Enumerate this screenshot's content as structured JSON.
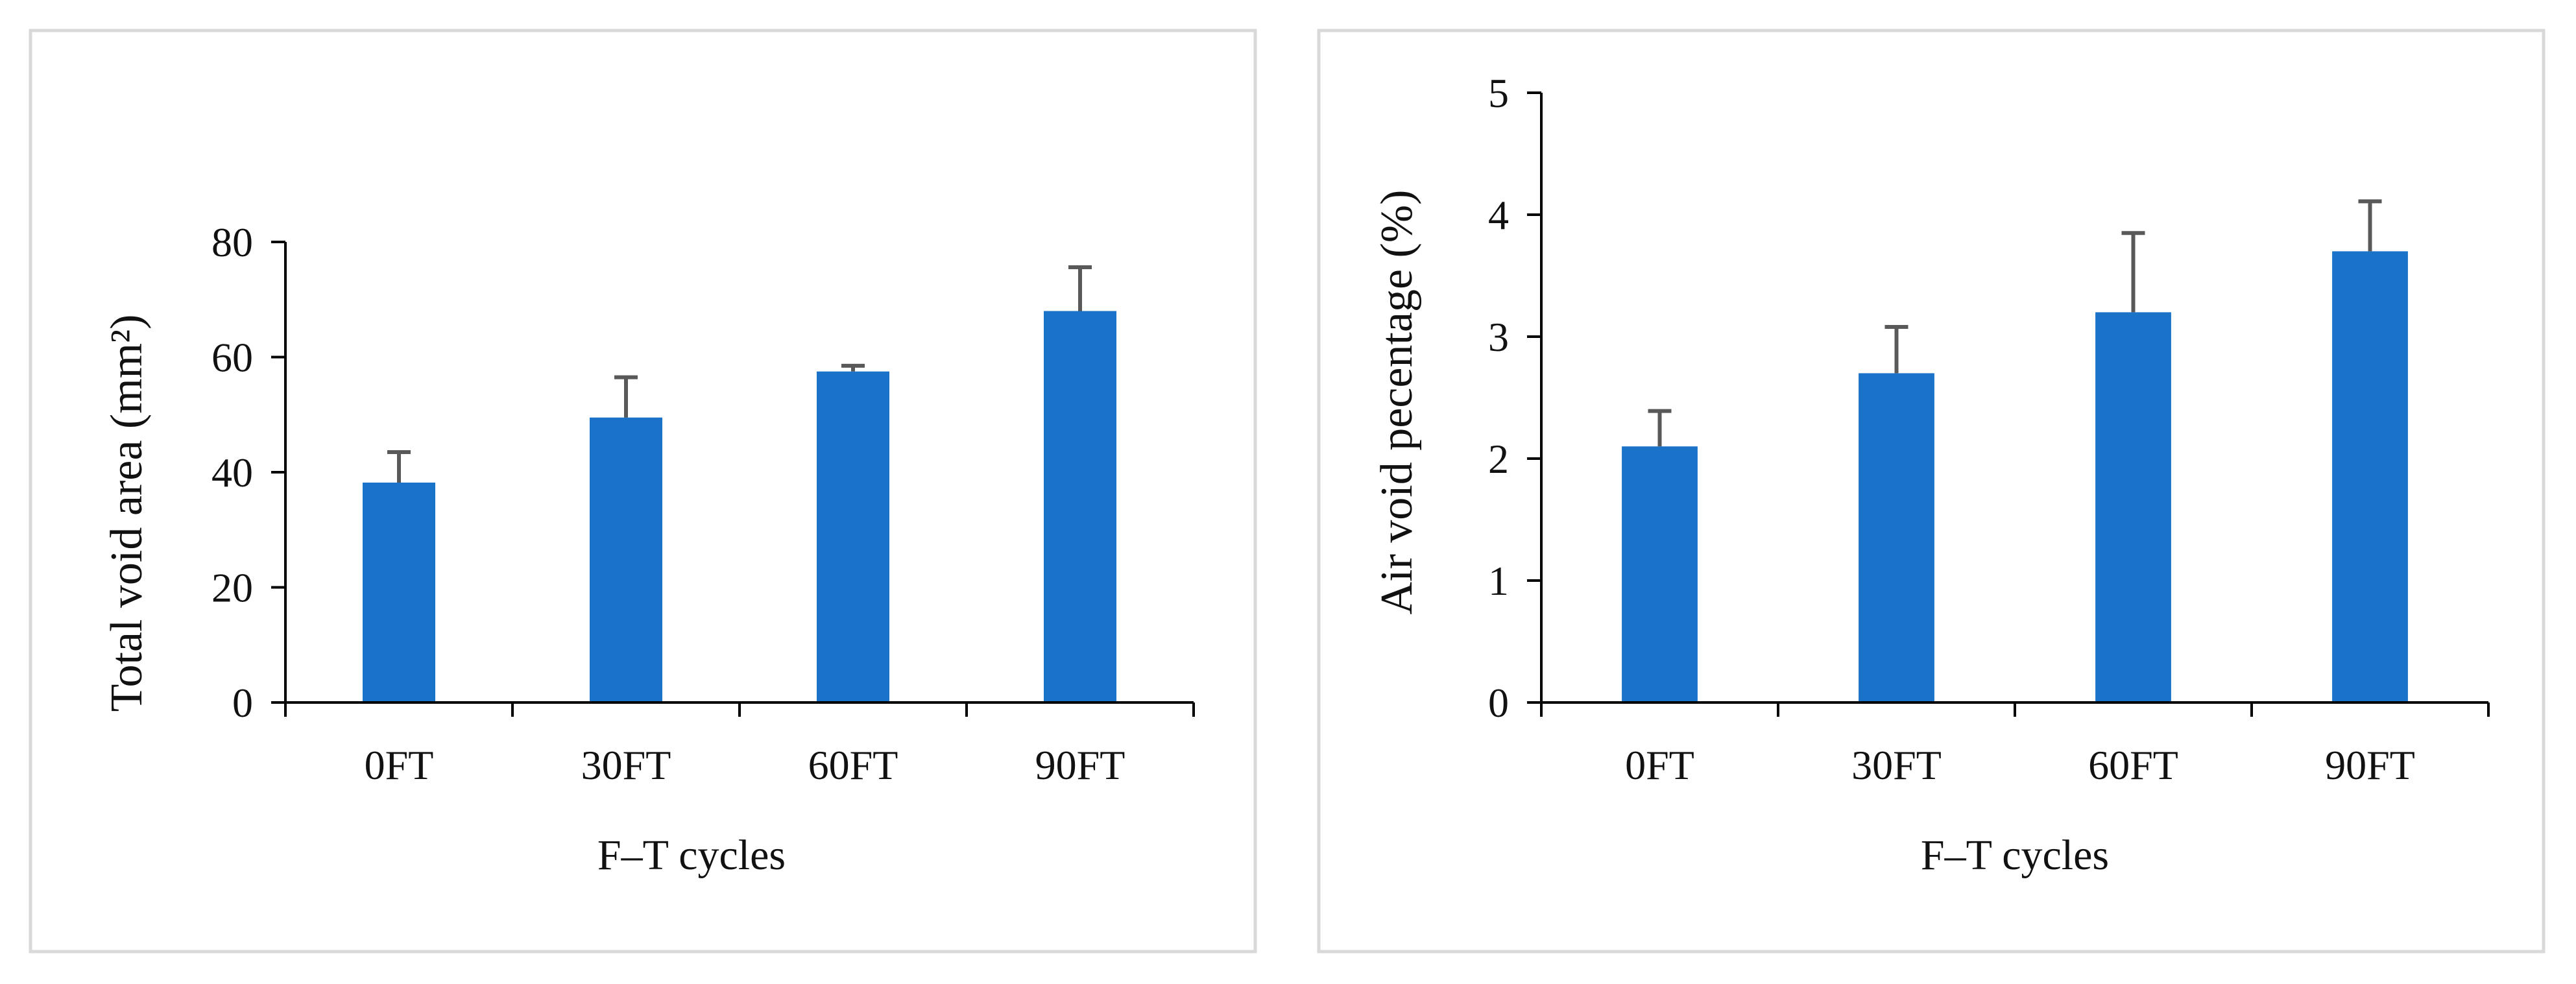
{
  "chart_data": [
    {
      "type": "bar",
      "categories": [
        "0FT",
        "30FT",
        "60FT",
        "90FT"
      ],
      "values": [
        38.2,
        49.5,
        57.5,
        68.0
      ],
      "error_plus": [
        5.3,
        7.0,
        1.0,
        7.6
      ],
      "title": "",
      "xlabel": "F–T cycles",
      "ylabel": "Total void area (mm²)",
      "ylim": [
        0,
        80
      ],
      "yticks": [
        0,
        20,
        40,
        60,
        80
      ],
      "grid": false,
      "legend": "none"
    },
    {
      "type": "bar",
      "categories": [
        "0FT",
        "30FT",
        "60FT",
        "90FT"
      ],
      "values": [
        2.1,
        2.7,
        3.2,
        3.7
      ],
      "error_plus": [
        0.29,
        0.38,
        0.65,
        0.41
      ],
      "title": "",
      "xlabel": "F–T cycles",
      "ylabel": "Air void pecentage (%)",
      "ylim": [
        0,
        5
      ],
      "yticks": [
        0,
        1,
        2,
        3,
        4,
        5
      ],
      "grid": false,
      "legend": "none"
    }
  ],
  "colors": {
    "bar": "#1a73c8",
    "error_bar": "#595959",
    "axis": "#000000",
    "frame": "#d9d9d9"
  }
}
